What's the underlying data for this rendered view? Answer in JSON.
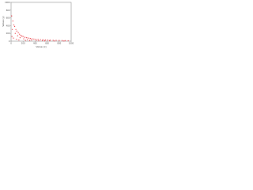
{
  "chart_data": {
    "type": "scatter",
    "x_label": "Value (x)",
    "y_label": "Value (y)",
    "xlim": [
      0,
      1000
    ],
    "ylim": [
      0,
      1000
    ],
    "xticks": [
      0,
      200,
      400,
      600,
      800,
      1000
    ],
    "yticks": [
      0,
      200,
      400,
      600,
      800,
      1000
    ],
    "color": "#e8212b",
    "series": [
      {
        "name": "points",
        "color": "#e8212b",
        "x": [
          10,
          30,
          45,
          60,
          80,
          95,
          120,
          140,
          160,
          180,
          200,
          230,
          260,
          290,
          320,
          350,
          380,
          410,
          450,
          490,
          530,
          570,
          610,
          650,
          700,
          750,
          800,
          850,
          900,
          950,
          20,
          70,
          110,
          150,
          210,
          270,
          340,
          420,
          520,
          640,
          15,
          40,
          90,
          130,
          240,
          310,
          460,
          560,
          720,
          880
        ],
        "y": [
          650,
          520,
          420,
          380,
          300,
          260,
          220,
          180,
          150,
          130,
          120,
          100,
          90,
          80,
          70,
          60,
          55,
          50,
          45,
          40,
          35,
          30,
          28,
          25,
          22,
          20,
          18,
          15,
          12,
          10,
          300,
          200,
          140,
          90,
          60,
          40,
          30,
          20,
          15,
          10,
          120,
          80,
          50,
          30,
          20,
          15,
          10,
          8,
          6,
          5
        ]
      }
    ]
  }
}
